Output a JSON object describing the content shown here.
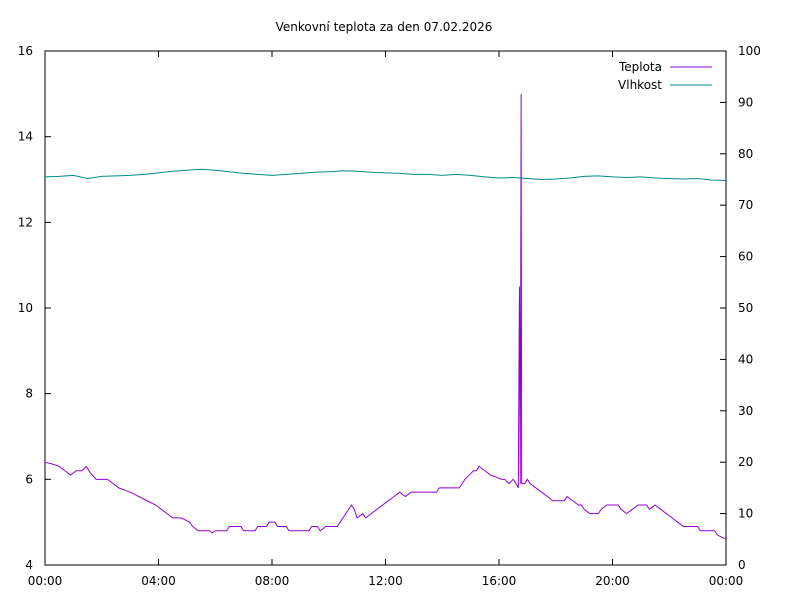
{
  "chart_data": {
    "type": "line",
    "title": "Venkovní teplota za den 07.02.2026",
    "x_ticks": [
      "00:00",
      "04:00",
      "08:00",
      "12:00",
      "16:00",
      "20:00",
      "00:00"
    ],
    "x_range_hours": [
      0,
      24
    ],
    "y_left": {
      "range": [
        4,
        16
      ],
      "ticks": [
        4,
        6,
        8,
        10,
        12,
        14,
        16
      ]
    },
    "y_right": {
      "range": [
        0,
        100
      ],
      "ticks": [
        0,
        10,
        20,
        30,
        40,
        50,
        60,
        70,
        80,
        90,
        100
      ]
    },
    "grid": false,
    "legend_position": "top-right",
    "series": [
      {
        "name": "Teplota",
        "axis": "left",
        "color": "#9400d3",
        "points": [
          [
            0,
            6.4
          ],
          [
            0.3,
            6.35
          ],
          [
            0.5,
            6.3
          ],
          [
            0.7,
            6.2
          ],
          [
            0.9,
            6.1
          ],
          [
            1.1,
            6.2
          ],
          [
            1.3,
            6.2
          ],
          [
            1.45,
            6.3
          ],
          [
            1.6,
            6.15
          ],
          [
            1.8,
            6.0
          ],
          [
            2.2,
            6.0
          ],
          [
            2.4,
            5.9
          ],
          [
            2.6,
            5.8
          ],
          [
            3.0,
            5.7
          ],
          [
            3.3,
            5.6
          ],
          [
            3.6,
            5.5
          ],
          [
            3.9,
            5.4
          ],
          [
            4.1,
            5.3
          ],
          [
            4.3,
            5.2
          ],
          [
            4.5,
            5.1
          ],
          [
            4.8,
            5.1
          ],
          [
            5.1,
            5.0
          ],
          [
            5.2,
            4.9
          ],
          [
            5.4,
            4.8
          ],
          [
            5.8,
            4.8
          ],
          [
            5.9,
            4.75
          ],
          [
            6.0,
            4.8
          ],
          [
            6.4,
            4.8
          ],
          [
            6.5,
            4.9
          ],
          [
            6.9,
            4.9
          ],
          [
            7.0,
            4.8
          ],
          [
            7.4,
            4.8
          ],
          [
            7.5,
            4.9
          ],
          [
            7.8,
            4.9
          ],
          [
            7.9,
            5.0
          ],
          [
            8.1,
            5.0
          ],
          [
            8.2,
            4.9
          ],
          [
            8.5,
            4.9
          ],
          [
            8.6,
            4.8
          ],
          [
            9.3,
            4.8
          ],
          [
            9.4,
            4.9
          ],
          [
            9.6,
            4.9
          ],
          [
            9.7,
            4.8
          ],
          [
            9.9,
            4.9
          ],
          [
            10.3,
            4.9
          ],
          [
            10.4,
            5.0
          ],
          [
            10.5,
            5.1
          ],
          [
            10.6,
            5.2
          ],
          [
            10.7,
            5.3
          ],
          [
            10.8,
            5.4
          ],
          [
            10.9,
            5.3
          ],
          [
            11.0,
            5.1
          ],
          [
            11.2,
            5.2
          ],
          [
            11.3,
            5.1
          ],
          [
            11.5,
            5.2
          ],
          [
            11.7,
            5.3
          ],
          [
            11.9,
            5.4
          ],
          [
            12.1,
            5.5
          ],
          [
            12.3,
            5.6
          ],
          [
            12.5,
            5.7
          ],
          [
            12.7,
            5.6
          ],
          [
            12.9,
            5.7
          ],
          [
            13.1,
            5.7
          ],
          [
            13.2,
            5.7
          ],
          [
            13.8,
            5.7
          ],
          [
            13.9,
            5.8
          ],
          [
            14.6,
            5.8
          ],
          [
            14.7,
            5.9
          ],
          [
            14.8,
            6.0
          ],
          [
            14.95,
            6.1
          ],
          [
            15.1,
            6.2
          ],
          [
            15.2,
            6.2
          ],
          [
            15.3,
            6.3
          ],
          [
            15.5,
            6.2
          ],
          [
            15.7,
            6.1
          ],
          [
            15.9,
            6.05
          ],
          [
            16.1,
            6.0
          ],
          [
            16.2,
            6.0
          ],
          [
            16.35,
            5.9
          ],
          [
            16.5,
            6.0
          ],
          [
            16.6,
            5.9
          ],
          [
            16.68,
            5.8
          ],
          [
            16.72,
            10.5
          ],
          [
            16.75,
            5.9
          ],
          [
            16.78,
            15.0
          ],
          [
            16.8,
            5.9
          ],
          [
            16.9,
            5.9
          ],
          [
            17.0,
            6.0
          ],
          [
            17.1,
            5.9
          ],
          [
            17.3,
            5.8
          ],
          [
            17.5,
            5.7
          ],
          [
            17.7,
            5.6
          ],
          [
            17.9,
            5.5
          ],
          [
            18.3,
            5.5
          ],
          [
            18.4,
            5.6
          ],
          [
            18.6,
            5.5
          ],
          [
            18.8,
            5.4
          ],
          [
            18.9,
            5.4
          ],
          [
            19.0,
            5.3
          ],
          [
            19.2,
            5.2
          ],
          [
            19.5,
            5.2
          ],
          [
            19.6,
            5.3
          ],
          [
            19.8,
            5.4
          ],
          [
            20.2,
            5.4
          ],
          [
            20.3,
            5.3
          ],
          [
            20.5,
            5.2
          ],
          [
            20.7,
            5.3
          ],
          [
            20.9,
            5.4
          ],
          [
            21.2,
            5.4
          ],
          [
            21.3,
            5.3
          ],
          [
            21.5,
            5.4
          ],
          [
            21.7,
            5.3
          ],
          [
            21.9,
            5.2
          ],
          [
            22.1,
            5.1
          ],
          [
            22.3,
            5.0
          ],
          [
            22.5,
            4.9
          ],
          [
            22.8,
            4.9
          ],
          [
            23.0,
            4.9
          ],
          [
            23.1,
            4.8
          ],
          [
            23.6,
            4.8
          ],
          [
            23.7,
            4.7
          ],
          [
            23.85,
            4.65
          ],
          [
            24,
            4.6
          ]
        ]
      },
      {
        "name": "Vlhkost",
        "axis": "right",
        "color": "#008b8b",
        "points": [
          [
            0,
            75.5
          ],
          [
            0.5,
            75.6
          ],
          [
            1.0,
            75.8
          ],
          [
            1.5,
            75.2
          ],
          [
            2.0,
            75.6
          ],
          [
            2.5,
            75.7
          ],
          [
            3.0,
            75.8
          ],
          [
            3.5,
            76.0
          ],
          [
            4.0,
            76.3
          ],
          [
            4.5,
            76.6
          ],
          [
            5.0,
            76.8
          ],
          [
            5.5,
            77.0
          ],
          [
            6.0,
            76.8
          ],
          [
            6.5,
            76.5
          ],
          [
            7.0,
            76.2
          ],
          [
            7.5,
            76.0
          ],
          [
            8.0,
            75.8
          ],
          [
            8.5,
            76.0
          ],
          [
            9.0,
            76.2
          ],
          [
            9.5,
            76.4
          ],
          [
            10.0,
            76.5
          ],
          [
            10.5,
            76.7
          ],
          [
            11.0,
            76.6
          ],
          [
            11.5,
            76.4
          ],
          [
            12.0,
            76.3
          ],
          [
            12.5,
            76.2
          ],
          [
            13.0,
            76.0
          ],
          [
            13.5,
            76.0
          ],
          [
            14.0,
            75.8
          ],
          [
            14.5,
            76.0
          ],
          [
            15.0,
            75.8
          ],
          [
            15.5,
            75.5
          ],
          [
            16.0,
            75.3
          ],
          [
            16.5,
            75.4
          ],
          [
            17.0,
            75.2
          ],
          [
            17.5,
            75.0
          ],
          [
            18.0,
            75.1
          ],
          [
            18.5,
            75.3
          ],
          [
            19.0,
            75.6
          ],
          [
            19.5,
            75.7
          ],
          [
            20.0,
            75.5
          ],
          [
            20.5,
            75.4
          ],
          [
            21.0,
            75.5
          ],
          [
            21.5,
            75.3
          ],
          [
            22.0,
            75.2
          ],
          [
            22.5,
            75.1
          ],
          [
            23.0,
            75.2
          ],
          [
            23.5,
            74.9
          ],
          [
            24,
            74.8
          ]
        ]
      }
    ]
  }
}
